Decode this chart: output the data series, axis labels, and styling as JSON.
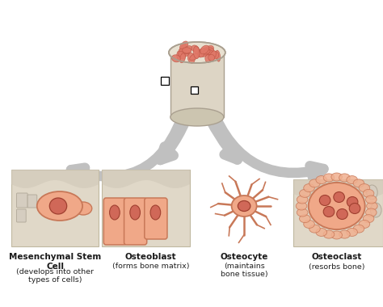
{
  "bg_color": "#ffffff",
  "arrow_color": "#c0c0c0",
  "arrow_fill": "#c8c8c8",
  "cell_fill": "#f0a888",
  "cell_outline": "#c87858",
  "nucleus_fill": "#d06858",
  "bone_bg_light": "#e8e0d0",
  "bone_bg_dark": "#d8cfc0",
  "labels": [
    "Mesenchymal Stem\nCell",
    "Osteoblast",
    "Osteocyte",
    "Osteoclast"
  ],
  "sublabels": [
    "(develops into other\ntypes of cells)",
    "(forms bone matrix)",
    "(maintains\nbone tissue)",
    "(resorbs bone)"
  ],
  "figsize": [
    4.74,
    3.8
  ],
  "dpi": 100
}
